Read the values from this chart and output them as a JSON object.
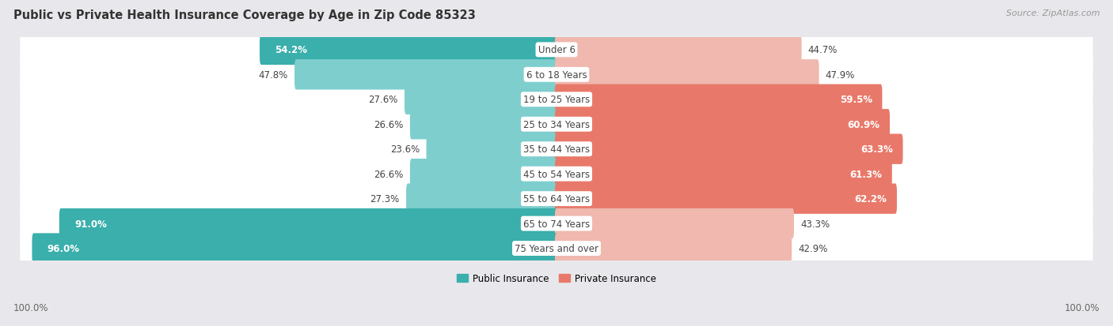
{
  "title": "Public vs Private Health Insurance Coverage by Age in Zip Code 85323",
  "source": "Source: ZipAtlas.com",
  "categories": [
    "Under 6",
    "6 to 18 Years",
    "19 to 25 Years",
    "25 to 34 Years",
    "35 to 44 Years",
    "45 to 54 Years",
    "55 to 64 Years",
    "65 to 74 Years",
    "75 Years and over"
  ],
  "public_values": [
    54.2,
    47.8,
    27.6,
    26.6,
    23.6,
    26.6,
    27.3,
    91.0,
    96.0
  ],
  "private_values": [
    44.7,
    47.9,
    59.5,
    60.9,
    63.3,
    61.3,
    62.2,
    43.3,
    42.9
  ],
  "public_color_dark": "#3aafab",
  "public_color_light": "#7ecece",
  "private_color_dark": "#e8796a",
  "private_color_light": "#f0b8ae",
  "bg_color": "#e8e8ec",
  "row_bg_color": "#ffffff",
  "title_fontsize": 10.5,
  "source_fontsize": 8,
  "label_fontsize": 8.5,
  "legend_fontsize": 8.5,
  "axis_label": "100.0%",
  "pub_threshold": 50,
  "priv_threshold": 50
}
